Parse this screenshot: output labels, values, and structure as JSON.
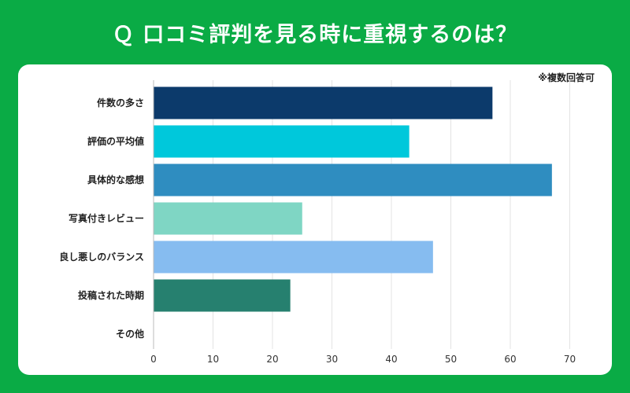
{
  "title": "Ｑ 口コミ評判を見る時に重視するのは？",
  "note": "※複数回答可",
  "chart_data": {
    "type": "bar",
    "orientation": "horizontal",
    "title": "Ｑ 口コミ評判を見る時に重視するのは？",
    "categories": [
      "件数の多さ",
      "評価の平均値",
      "具体的な感想",
      "写真付きレビュー",
      "良し悪しのバランス",
      "投稿された時期",
      "その他"
    ],
    "values": [
      57,
      43,
      67,
      25,
      47,
      23,
      0
    ],
    "colors": [
      "#0c3a6b",
      "#00c8db",
      "#2f8dc0",
      "#7fd6c4",
      "#86bcf0",
      "#26806f",
      "#999999"
    ],
    "xlim": [
      0,
      70
    ],
    "xticks": [
      0,
      10,
      20,
      30,
      40,
      50,
      60,
      70
    ],
    "grid": true,
    "legend": "none"
  }
}
